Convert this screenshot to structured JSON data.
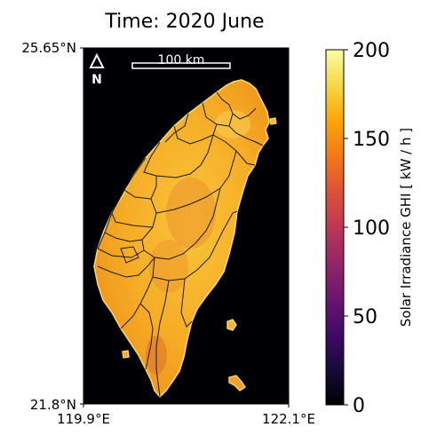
{
  "title": "Time: 2020 June",
  "map": {
    "lat_top_label": "25.65°N",
    "lat_bottom_label": "21.8°N",
    "lon_left_label": "119.9°E",
    "lon_right_label": "122.1°E",
    "scale_bar_label": "100 km",
    "north_label": "N"
  },
  "colorbar": {
    "label": "Solar Irradiance GHI [ kW / h ]",
    "colormap": "inferno",
    "min": 0,
    "max": 200,
    "ticks": [
      "200",
      "150",
      "100",
      "50",
      "0"
    ]
  },
  "colors": {
    "background": "#000004",
    "land_low": "#f3a51c",
    "land_high": "#f8d44e",
    "boundary": "#1a1a1a"
  }
}
